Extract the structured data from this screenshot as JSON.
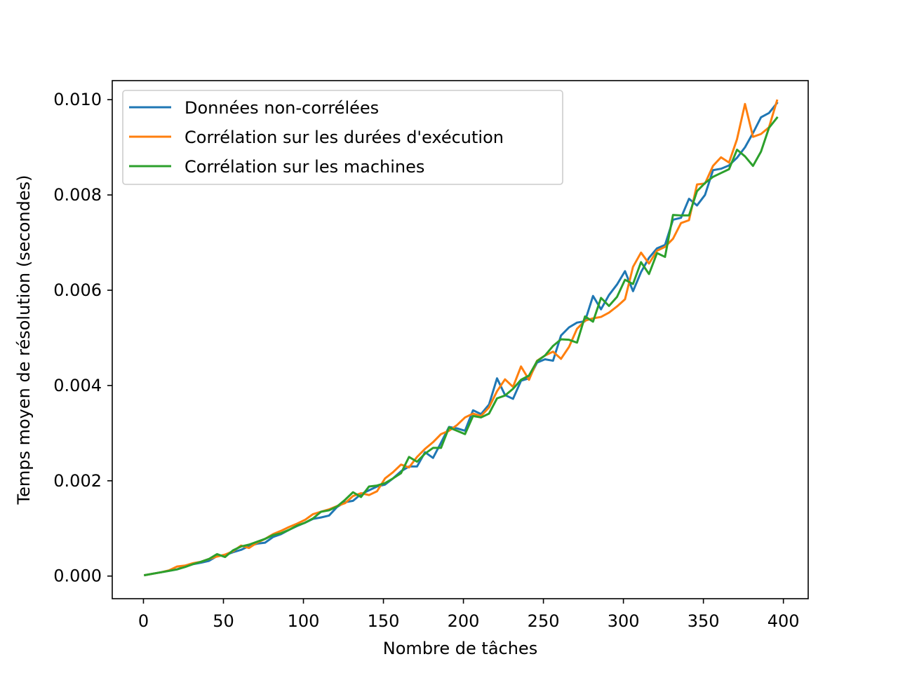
{
  "chart_data": {
    "type": "line",
    "title": "",
    "xlabel": "Nombre de tâches",
    "ylabel": "Temps moyen de résolution (secondes)",
    "xlim": [
      -19.5,
      415.5
    ],
    "ylim": [
      -0.000475,
      0.0104
    ],
    "xticks": [
      0,
      50,
      100,
      150,
      200,
      250,
      300,
      350,
      400
    ],
    "yticks": [
      0.0,
      0.002,
      0.004,
      0.006,
      0.008,
      0.01
    ],
    "xtick_labels": [
      "0",
      "50",
      "100",
      "150",
      "200",
      "250",
      "300",
      "350",
      "400"
    ],
    "ytick_labels": [
      "0.000",
      "0.002",
      "0.004",
      "0.006",
      "0.008",
      "0.010"
    ],
    "grid": false,
    "legend_position": "top-left",
    "x": [
      1,
      6,
      11,
      16,
      21,
      26,
      31,
      36,
      41,
      46,
      51,
      56,
      61,
      66,
      71,
      76,
      81,
      86,
      91,
      96,
      101,
      106,
      111,
      116,
      121,
      126,
      131,
      136,
      141,
      146,
      151,
      156,
      161,
      166,
      171,
      176,
      181,
      186,
      191,
      196,
      201,
      206,
      211,
      216,
      221,
      226,
      231,
      236,
      241,
      246,
      251,
      256,
      261,
      266,
      271,
      276,
      281,
      286,
      291,
      296,
      301,
      306,
      311,
      316,
      321,
      326,
      331,
      336,
      341,
      346,
      351,
      356,
      361,
      366,
      371,
      376,
      381,
      386,
      391,
      396
    ],
    "series": [
      {
        "name": "Données non-corrélées",
        "color": "#1f77b4",
        "values": [
          2e-05,
          5e-05,
          8e-05,
          0.00011,
          0.00014,
          0.0002,
          0.00025,
          0.00028,
          0.00032,
          0.00042,
          0.00044,
          0.0005,
          0.00055,
          0.00063,
          0.00068,
          0.0007,
          0.00082,
          0.00088,
          0.00097,
          0.00105,
          0.00112,
          0.0012,
          0.00123,
          0.00127,
          0.00145,
          0.00155,
          0.00158,
          0.00172,
          0.0018,
          0.00188,
          0.00192,
          0.00205,
          0.0022,
          0.0023,
          0.0023,
          0.0026,
          0.00248,
          0.0028,
          0.00313,
          0.0031,
          0.00305,
          0.00348,
          0.0034,
          0.0036,
          0.00415,
          0.0038,
          0.00372,
          0.0041,
          0.00415,
          0.00448,
          0.00455,
          0.00452,
          0.00505,
          0.00522,
          0.00532,
          0.00535,
          0.00588,
          0.0056,
          0.0059,
          0.00612,
          0.0064,
          0.00598,
          0.00638,
          0.00668,
          0.00688,
          0.00695,
          0.00748,
          0.00752,
          0.00792,
          0.00778,
          0.008,
          0.00852,
          0.00855,
          0.00862,
          0.00878,
          0.009,
          0.0093,
          0.00963,
          0.00972,
          0.00993
        ]
      },
      {
        "name": "Corrélation sur les durées d'exécution",
        "color": "#ff7f0e",
        "values": [
          2e-05,
          5e-05,
          8e-05,
          0.00012,
          0.0002,
          0.00022,
          0.00027,
          0.0003,
          0.00036,
          0.00041,
          0.00045,
          0.00052,
          0.00064,
          0.00059,
          0.0007,
          0.00078,
          0.00088,
          0.00095,
          0.00103,
          0.0011,
          0.00118,
          0.0013,
          0.00135,
          0.0014,
          0.00147,
          0.00153,
          0.00168,
          0.00174,
          0.0017,
          0.00178,
          0.00205,
          0.00218,
          0.00234,
          0.00228,
          0.0025,
          0.00267,
          0.00281,
          0.00298,
          0.00305,
          0.00317,
          0.00333,
          0.00341,
          0.00336,
          0.00354,
          0.00388,
          0.00413,
          0.00397,
          0.0044,
          0.00412,
          0.00452,
          0.00463,
          0.00471,
          0.00456,
          0.00481,
          0.00519,
          0.00536,
          0.00541,
          0.00544,
          0.00553,
          0.00566,
          0.00581,
          0.00649,
          0.00679,
          0.00656,
          0.00683,
          0.00691,
          0.00708,
          0.00741,
          0.00747,
          0.00822,
          0.00824,
          0.00861,
          0.00879,
          0.00868,
          0.00917,
          0.00991,
          0.00922,
          0.00928,
          0.00942,
          0.00998
        ]
      },
      {
        "name": "Corrélation sur les machines",
        "color": "#2ca02c",
        "values": [
          2e-05,
          5e-05,
          8e-05,
          0.00011,
          0.00014,
          0.00019,
          0.00025,
          0.0003,
          0.00036,
          0.00046,
          0.0004,
          0.00054,
          0.00062,
          0.00066,
          0.00072,
          0.00078,
          0.00086,
          0.0009,
          0.00097,
          0.00106,
          0.00112,
          0.00121,
          0.00135,
          0.00138,
          0.00146,
          0.0016,
          0.00176,
          0.00166,
          0.00188,
          0.0019,
          0.00195,
          0.00205,
          0.00216,
          0.0025,
          0.0024,
          0.00257,
          0.00269,
          0.00269,
          0.00312,
          0.00305,
          0.00298,
          0.00336,
          0.00333,
          0.00341,
          0.00373,
          0.00379,
          0.00393,
          0.00412,
          0.00421,
          0.00451,
          0.00463,
          0.00483,
          0.00497,
          0.00496,
          0.0049,
          0.00545,
          0.00534,
          0.00584,
          0.00567,
          0.00586,
          0.00622,
          0.00613,
          0.00659,
          0.00634,
          0.00678,
          0.0067,
          0.00758,
          0.00757,
          0.00757,
          0.00808,
          0.00825,
          0.00838,
          0.00846,
          0.00854,
          0.00895,
          0.00881,
          0.00861,
          0.00891,
          0.00941,
          0.00962
        ]
      }
    ]
  }
}
